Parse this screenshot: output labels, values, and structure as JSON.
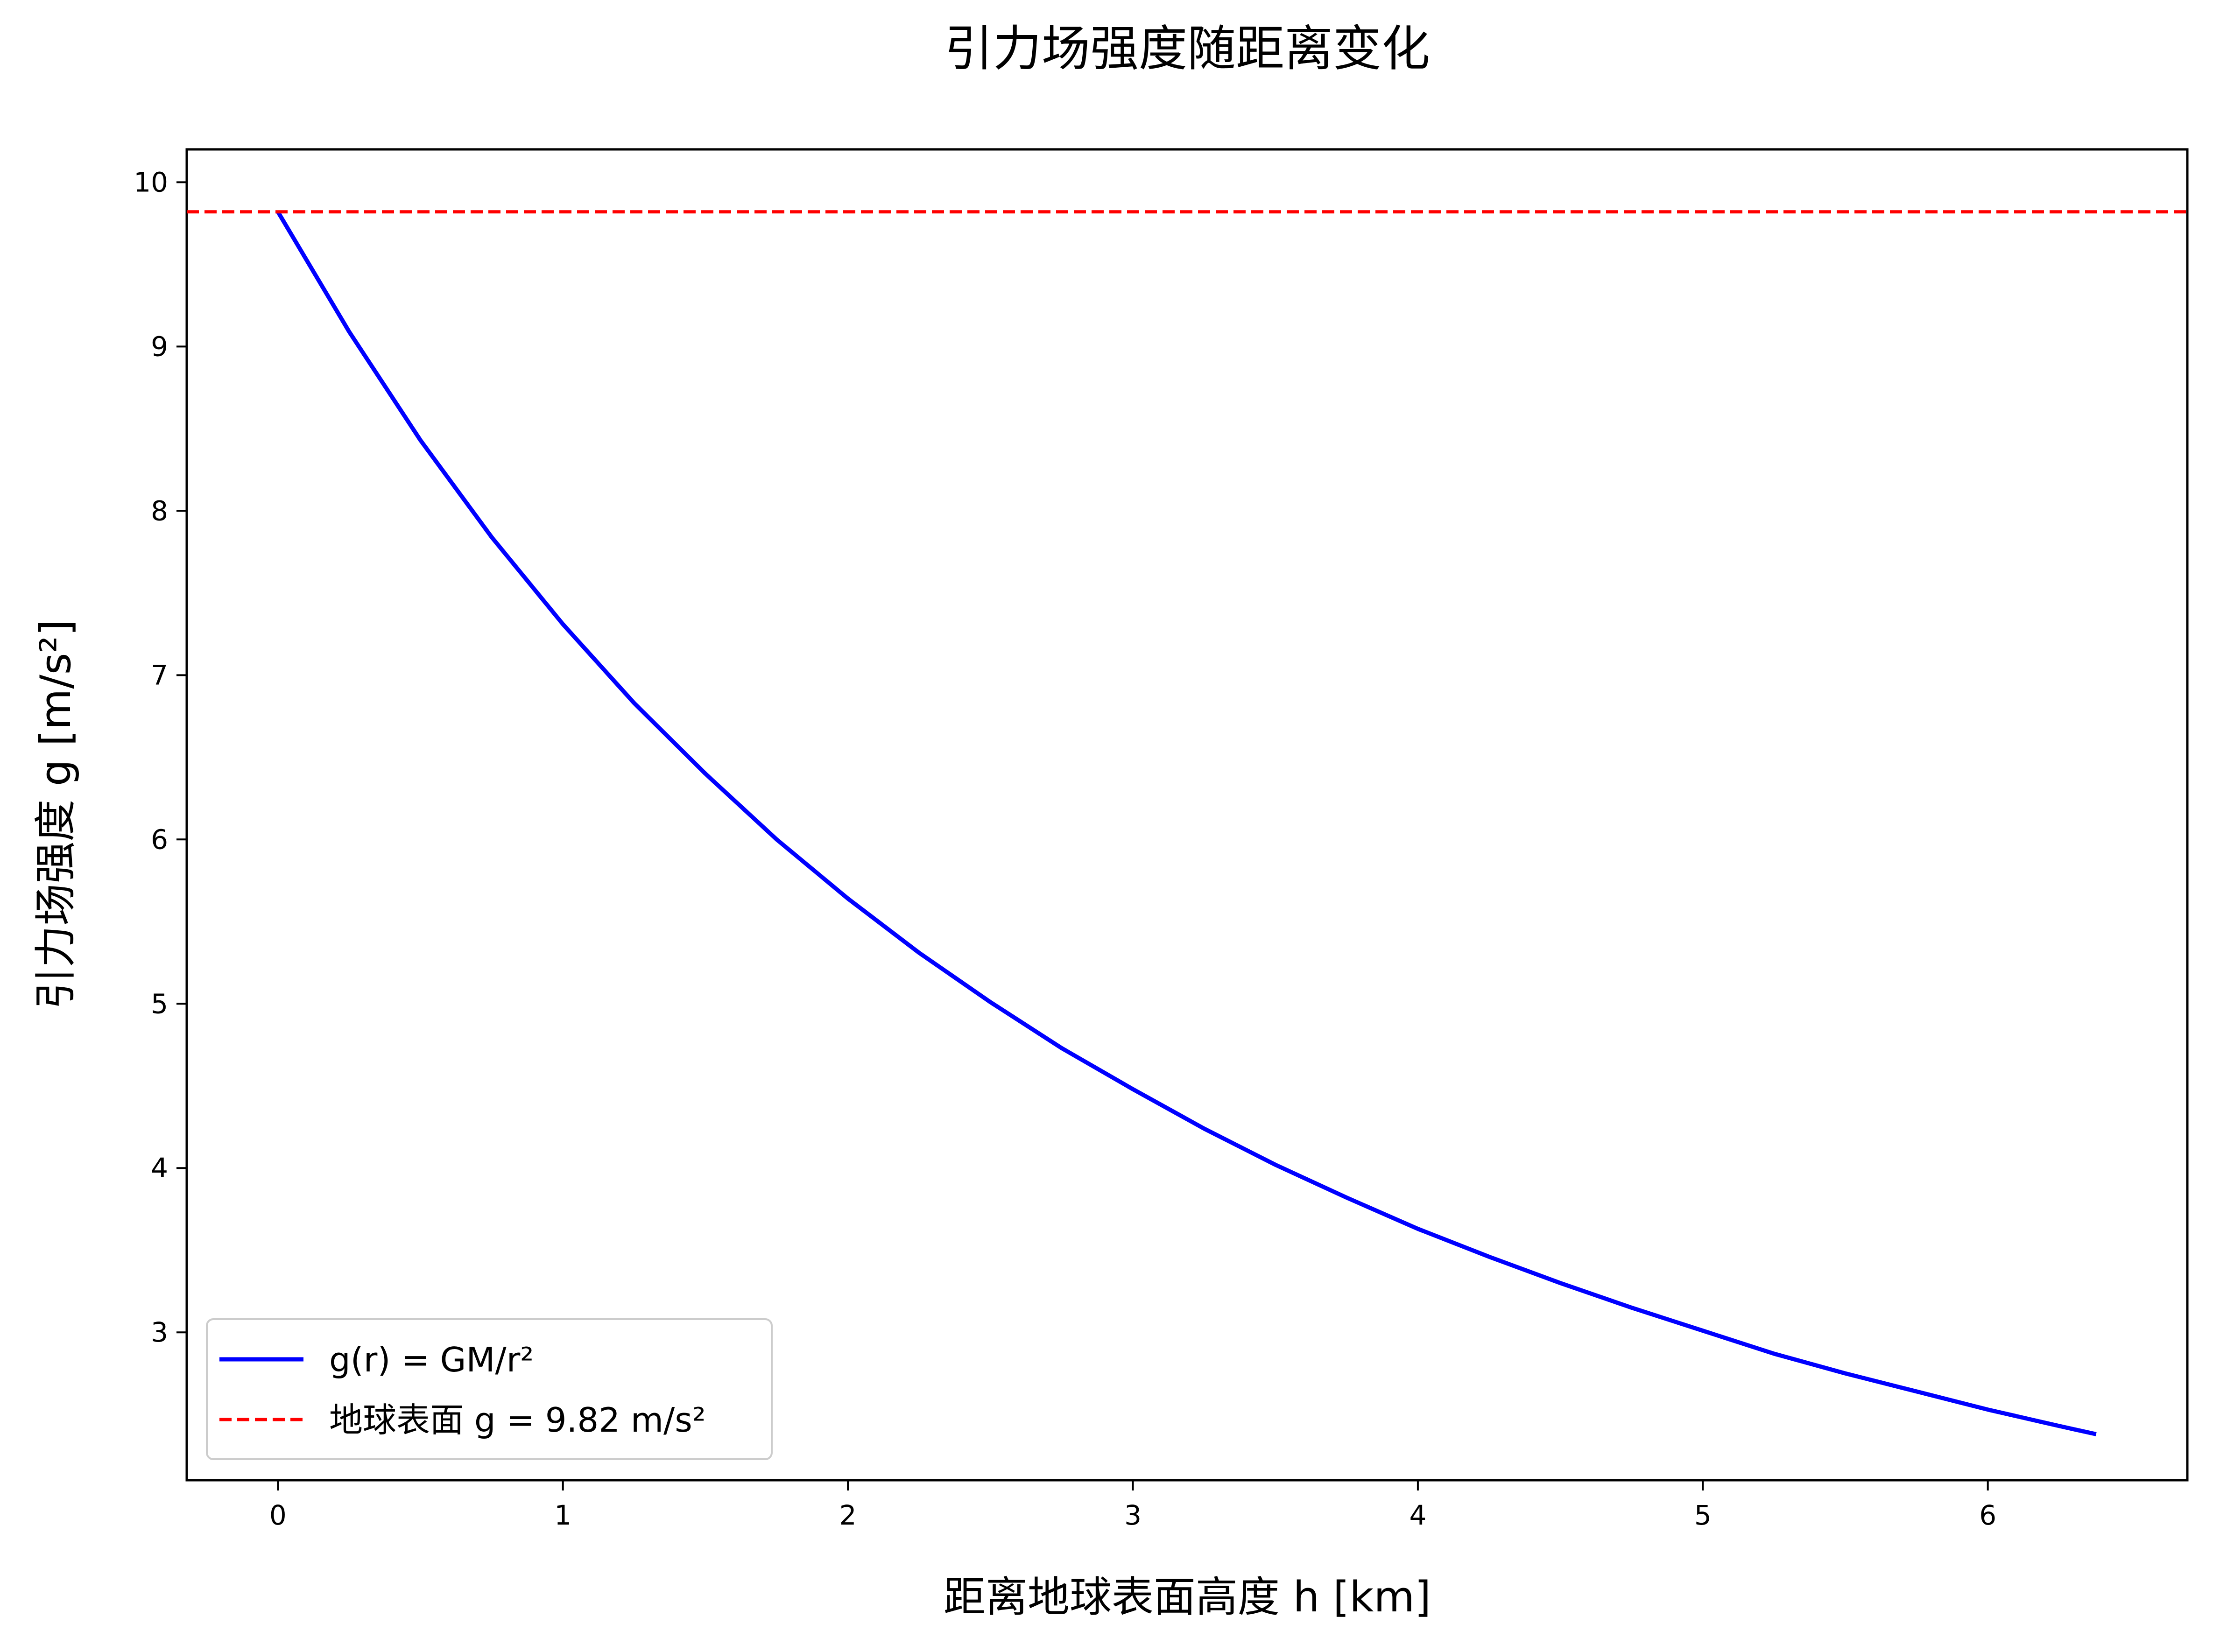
{
  "chart_data": {
    "type": "line",
    "title": "引力场强度随距离变化",
    "xlabel": "距离地球表面高度 h [km]",
    "ylabel": "引力场强度 g [m/s²]",
    "xlim": [
      -0.32,
      6.7
    ],
    "ylim": [
      2.1,
      10.2
    ],
    "xticks": [
      0,
      1,
      2,
      3,
      4,
      5,
      6
    ],
    "yticks": [
      3,
      4,
      5,
      6,
      7,
      8,
      9,
      10
    ],
    "xtick_labels": [
      "0",
      "1",
      "2",
      "3",
      "4",
      "5",
      "6"
    ],
    "ytick_labels": [
      "3",
      "4",
      "5",
      "6",
      "7",
      "8",
      "9",
      "10"
    ],
    "grid": false,
    "legend_position": "lower-left",
    "series": [
      {
        "name": "g(r) = GM/r²",
        "color": "#0000ff",
        "style": "solid",
        "x": [
          0,
          0.25,
          0.5,
          0.75,
          1.0,
          1.25,
          1.5,
          1.75,
          2.0,
          2.25,
          2.5,
          2.75,
          3.0,
          3.25,
          3.5,
          3.75,
          4.0,
          4.25,
          4.5,
          4.75,
          5.0,
          5.25,
          5.5,
          5.75,
          6.0,
          6.25,
          6.38
        ],
        "y": [
          9.82,
          9.09,
          8.43,
          7.84,
          7.31,
          6.83,
          6.4,
          6.0,
          5.64,
          5.31,
          5.01,
          4.73,
          4.48,
          4.24,
          4.02,
          3.82,
          3.63,
          3.46,
          3.3,
          3.15,
          3.01,
          2.87,
          2.75,
          2.64,
          2.53,
          2.43,
          2.38
        ]
      },
      {
        "name": "地球表面 g = 9.82 m/s²",
        "color": "#ff0000",
        "style": "dashed",
        "y_const": 9.82
      }
    ]
  }
}
